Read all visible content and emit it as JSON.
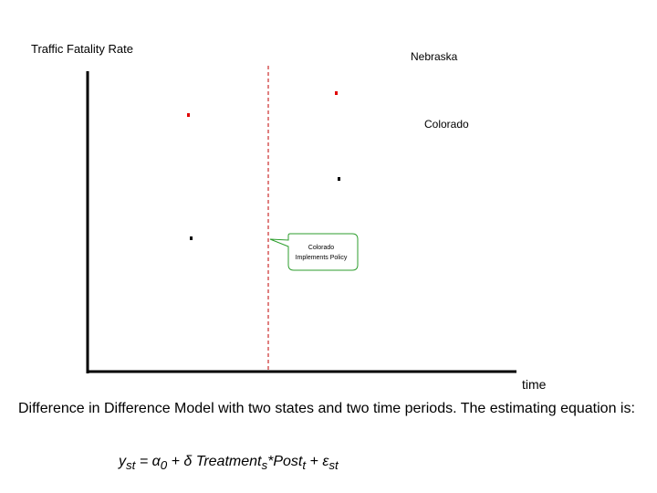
{
  "diagram": {
    "y_axis_label": "Traffic Fatality Rate",
    "x_axis_label": "time",
    "series_labels": {
      "nebraska": "Nebraska",
      "colorado": "Colorado"
    },
    "callout": {
      "line1": "Colorado",
      "line2": "Implements Policy"
    },
    "colors": {
      "nebraska_points": "#e00000",
      "colorado_points": "#000000",
      "policy_line": "#c00000",
      "callout_border": "#2e9e2e"
    }
  },
  "caption": "Difference in Difference Model with two states and two time periods.  The estimating equation is:",
  "equation": {
    "y": "y",
    "y_sub": "st",
    "eq": " = α",
    "alpha_sub": "0",
    "plus": " + δ Treatment",
    "treat_sub": "s",
    "post": "*Post",
    "post_sub": "t",
    "eps": " + ε",
    "eps_sub": "st"
  }
}
